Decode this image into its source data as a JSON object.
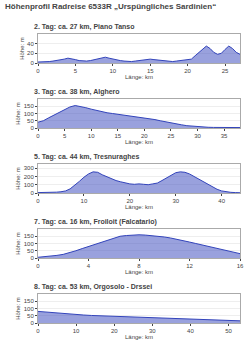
{
  "title": "Höhenprofil Radreise 6533R „Urspüngliches Sardinien“",
  "chart_data": [
    {
      "type": "area",
      "title": "2. Tag: ca. 27 km, Piano Tanso",
      "x_label": "Länge: km",
      "y_label": "Höhe: m",
      "color": "#3344bb",
      "grid": true,
      "xlim": [
        0,
        27
      ],
      "xticks": [
        0,
        5,
        10,
        15,
        20,
        25
      ],
      "ylim": [
        0,
        60
      ],
      "yticks": [
        0,
        20,
        40
      ],
      "x": [
        0,
        0.5,
        1,
        1.5,
        2,
        2.5,
        3,
        3.5,
        4,
        4.5,
        5,
        5.5,
        6,
        6.5,
        7,
        7.5,
        8,
        8.5,
        9,
        9.5,
        10,
        10.5,
        11,
        11.5,
        12,
        12.5,
        13,
        13.5,
        14,
        14.5,
        15,
        15.5,
        16,
        16.5,
        17,
        17.5,
        18,
        18.5,
        19,
        19.5,
        20,
        20.5,
        21,
        21.5,
        22,
        22.5,
        23,
        23.5,
        24,
        24.5,
        25,
        25.5,
        26,
        26.5,
        27
      ],
      "values": [
        2,
        2,
        2,
        3,
        4,
        5,
        6,
        8,
        10,
        9,
        7,
        5,
        4,
        4,
        5,
        7,
        9,
        11,
        12,
        10,
        8,
        6,
        5,
        4,
        3,
        3,
        4,
        5,
        6,
        7,
        8,
        7,
        6,
        5,
        4,
        3,
        3,
        4,
        5,
        6,
        7,
        8,
        15,
        22,
        28,
        35,
        30,
        22,
        18,
        20,
        28,
        35,
        30,
        22,
        18
      ]
    },
    {
      "type": "area",
      "title": "3. Tag: ca. 38 km, Alghero",
      "x_label": "Länge: km",
      "y_label": "Höhe: m",
      "color": "#3344bb",
      "grid": true,
      "xlim": [
        0,
        38
      ],
      "xticks": [
        0,
        5,
        10,
        15,
        20,
        25,
        30,
        35
      ],
      "ylim": [
        0,
        200
      ],
      "yticks": [
        0,
        50,
        100,
        150
      ],
      "x": [
        0,
        1,
        2,
        3,
        4,
        5,
        6,
        7,
        8,
        9,
        10,
        11,
        12,
        13,
        14,
        15,
        16,
        17,
        18,
        19,
        20,
        21,
        22,
        23,
        24,
        25,
        26,
        27,
        28,
        29,
        30,
        31,
        32,
        33,
        34,
        35,
        36,
        37,
        38
      ],
      "values": [
        40,
        50,
        70,
        90,
        110,
        130,
        145,
        155,
        150,
        140,
        130,
        120,
        110,
        105,
        100,
        95,
        90,
        85,
        80,
        75,
        70,
        65,
        58,
        50,
        42,
        35,
        28,
        22,
        16,
        12,
        8,
        6,
        5,
        4,
        3,
        3,
        3,
        3,
        3
      ]
    },
    {
      "type": "area",
      "title": "5. Tag: ca. 44 km, Tresnuraghes",
      "x_label": "Länge: km",
      "y_label": "Höhe: m",
      "color": "#3344bb",
      "grid": true,
      "xlim": [
        0,
        44
      ],
      "xticks": [
        0,
        10,
        20,
        30,
        40
      ],
      "ylim": [
        0,
        350
      ],
      "yticks": [
        0,
        100,
        200,
        300
      ],
      "x": [
        0,
        1,
        2,
        3,
        4,
        5,
        6,
        7,
        8,
        9,
        10,
        11,
        12,
        13,
        14,
        15,
        16,
        17,
        18,
        19,
        20,
        21,
        22,
        23,
        24,
        25,
        26,
        27,
        28,
        29,
        30,
        31,
        32,
        33,
        34,
        35,
        36,
        37,
        38,
        39,
        40,
        41,
        42,
        43,
        44
      ],
      "values": [
        5,
        5,
        6,
        8,
        10,
        15,
        25,
        50,
        90,
        140,
        190,
        230,
        255,
        250,
        220,
        195,
        170,
        150,
        135,
        120,
        110,
        105,
        110,
        105,
        100,
        110,
        120,
        150,
        180,
        210,
        245,
        255,
        250,
        230,
        200,
        165,
        130,
        100,
        70,
        45,
        25,
        15,
        8,
        5,
        3
      ]
    },
    {
      "type": "area",
      "title": "7. Tag: ca. 16 km, Froiloit (Falcatario)",
      "x_label": "Länge: km",
      "y_label": "Höhe: m",
      "color": "#3344bb",
      "grid": true,
      "xlim": [
        0,
        16
      ],
      "xticks": [
        0,
        4,
        8,
        12,
        16
      ],
      "ylim": [
        0,
        200
      ],
      "yticks": [
        0,
        50,
        100,
        150
      ],
      "x": [
        0,
        0.5,
        1,
        1.5,
        2,
        2.5,
        3,
        3.5,
        4,
        4.5,
        5,
        5.5,
        6,
        6.5,
        7,
        7.5,
        8,
        8.5,
        9,
        9.5,
        10,
        10.5,
        11,
        11.5,
        12,
        12.5,
        13,
        13.5,
        14,
        14.5,
        15,
        15.5,
        16
      ],
      "values": [
        5,
        8,
        12,
        18,
        25,
        35,
        50,
        65,
        80,
        95,
        110,
        125,
        140,
        150,
        155,
        158,
        160,
        158,
        155,
        150,
        145,
        138,
        130,
        120,
        110,
        100,
        90,
        80,
        70,
        60,
        50,
        40,
        30
      ]
    },
    {
      "type": "area",
      "title": "8. Tag: ca. 53 km, Orgosolo - Drssei",
      "x_label": "Länge: km",
      "y_label": "Höhe: m",
      "color": "#3344bb",
      "grid": true,
      "xlim": [
        0,
        53
      ],
      "xticks": [
        0,
        10,
        20,
        30,
        40,
        50
      ],
      "ylim": [
        0,
        200
      ],
      "yticks": [
        0,
        50,
        100,
        150
      ],
      "x": [
        0,
        2,
        4,
        6,
        8,
        10,
        12,
        14,
        16,
        18,
        20,
        22,
        24,
        26,
        28,
        30,
        32,
        34,
        36,
        38,
        40,
        42,
        44,
        46,
        48,
        50,
        52,
        53
      ],
      "values": [
        80,
        75,
        70,
        65,
        62,
        58,
        55,
        52,
        50,
        48,
        45,
        43,
        42,
        40,
        38,
        36,
        35,
        34,
        32,
        30,
        28,
        26,
        24,
        22,
        20,
        18,
        16,
        15
      ]
    }
  ]
}
